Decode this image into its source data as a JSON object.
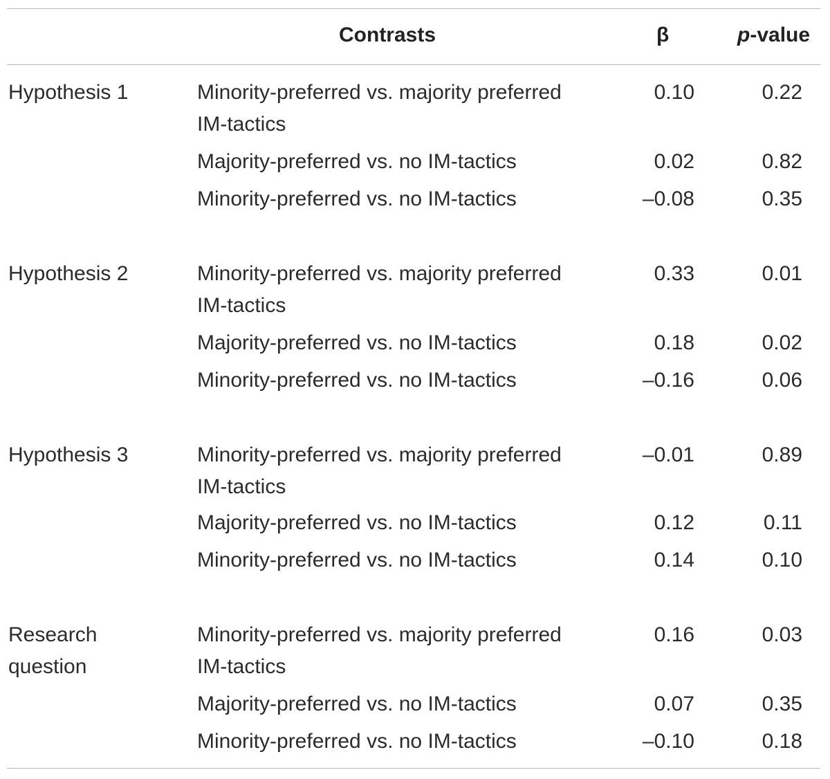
{
  "table": {
    "header": {
      "contrasts": "Contrasts",
      "beta": "β",
      "p_italic": "p",
      "p_rest": "-value"
    },
    "groups": [
      {
        "label_lines": [
          "Hypothesis 1"
        ],
        "rows": [
          {
            "contrast_lines": [
              "Minority-preferred vs. majority preferred",
              "IM-tactics"
            ],
            "beta": "0.10",
            "p": "0.22"
          },
          {
            "contrast_lines": [
              "Majority-preferred vs. no IM-tactics"
            ],
            "beta": "0.02",
            "p": "0.82"
          },
          {
            "contrast_lines": [
              "Minority-preferred vs. no IM-tactics"
            ],
            "beta": "–0.08",
            "p": "0.35"
          }
        ]
      },
      {
        "label_lines": [
          "Hypothesis 2"
        ],
        "rows": [
          {
            "contrast_lines": [
              "Minority-preferred vs. majority preferred",
              "IM-tactics"
            ],
            "beta": "0.33",
            "p": "0.01"
          },
          {
            "contrast_lines": [
              "Majority-preferred vs. no IM-tactics"
            ],
            "beta": "0.18",
            "p": "0.02"
          },
          {
            "contrast_lines": [
              "Minority-preferred vs. no IM-tactics"
            ],
            "beta": "–0.16",
            "p": "0.06"
          }
        ]
      },
      {
        "label_lines": [
          "Hypothesis 3"
        ],
        "rows": [
          {
            "contrast_lines": [
              "Minority-preferred vs. majority preferred",
              "IM-tactics"
            ],
            "beta": "–0.01",
            "p": "0.89"
          },
          {
            "contrast_lines": [
              "Majority-preferred vs. no IM-tactics"
            ],
            "beta": "0.12",
            "p": "0.11"
          },
          {
            "contrast_lines": [
              "Minority-preferred vs. no IM-tactics"
            ],
            "beta": "0.14",
            "p": "0.10"
          }
        ]
      },
      {
        "label_lines": [
          "Research",
          "question"
        ],
        "rows": [
          {
            "contrast_lines": [
              "Minority-preferred vs. majority preferred",
              "IM-tactics"
            ],
            "beta": "0.16",
            "p": "0.03"
          },
          {
            "contrast_lines": [
              "Majority-preferred vs. no IM-tactics"
            ],
            "beta": "0.07",
            "p": "0.35"
          },
          {
            "contrast_lines": [
              "Minority-preferred vs. no IM-tactics"
            ],
            "beta": "–0.10",
            "p": "0.18"
          }
        ]
      }
    ]
  }
}
